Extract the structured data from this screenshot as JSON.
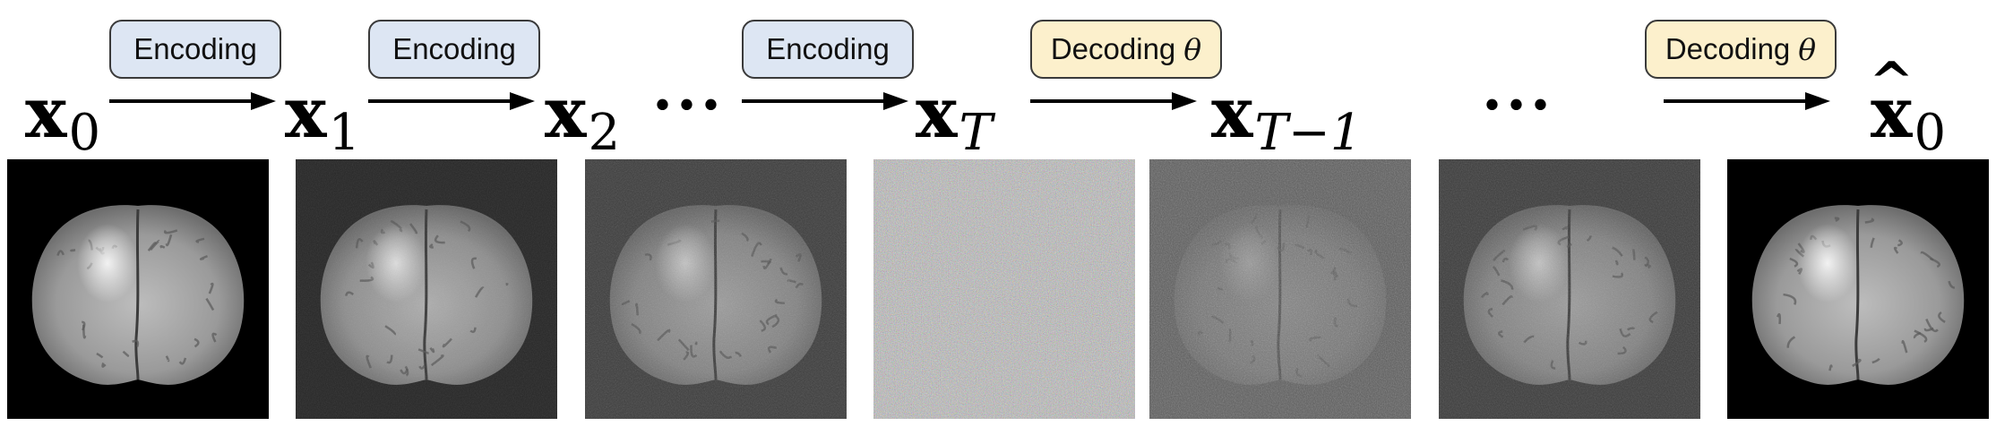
{
  "labels": {
    "encoding_1": "Encoding",
    "encoding_2": "Encoding",
    "encoding_3": "Encoding",
    "decoding_1": "Decoding",
    "decoding_2": "Decoding",
    "theta": "θ"
  },
  "variables": {
    "x0": {
      "base": "x",
      "sub": "0"
    },
    "x1": {
      "base": "x",
      "sub": "1"
    },
    "x2": {
      "base": "x",
      "sub": "2"
    },
    "xT": {
      "base": "x",
      "sub": "T"
    },
    "xTm1": {
      "base": "x",
      "sub": "T−1"
    },
    "xhat0": {
      "base": "x",
      "hat": "^",
      "sub": "0"
    }
  },
  "ellipsis": "···",
  "panels": [
    {
      "background": "#000000",
      "noise": 0.0,
      "brain": 1.0,
      "color_noise": false
    },
    {
      "background": "#262626",
      "noise": 0.25,
      "brain": 0.9,
      "color_noise": false
    },
    {
      "background": "#3a3a3a",
      "noise": 0.45,
      "brain": 0.75,
      "color_noise": false
    },
    {
      "background": "#bdbdbd",
      "noise": 1.0,
      "brain": 0.0,
      "color_noise": true
    },
    {
      "background": "#5a5a5a",
      "noise": 0.75,
      "brain": 0.4,
      "color_noise": false
    },
    {
      "background": "#3a3a3a",
      "noise": 0.45,
      "brain": 0.75,
      "color_noise": false
    },
    {
      "background": "#000000",
      "noise": 0.0,
      "brain": 1.0,
      "color_noise": false
    }
  ]
}
